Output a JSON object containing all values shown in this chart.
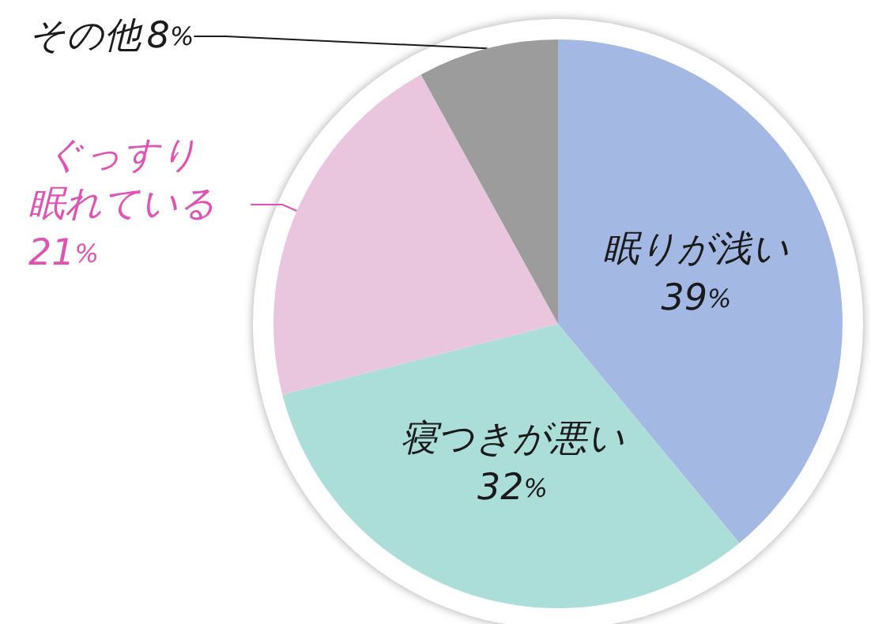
{
  "chart_data": {
    "type": "pie",
    "categories": [
      "眠りが浅い",
      "寝つきが悪い",
      "ぐっすり眠れている",
      "その他"
    ],
    "values": [
      39,
      32,
      21,
      8
    ],
    "value_labels": [
      "39%",
      "32%",
      "21%",
      "8%"
    ],
    "colors": [
      "#a3b9e3",
      "#abded9",
      "#e9c6de",
      "#9c9c9c"
    ],
    "legend": false
  }
}
